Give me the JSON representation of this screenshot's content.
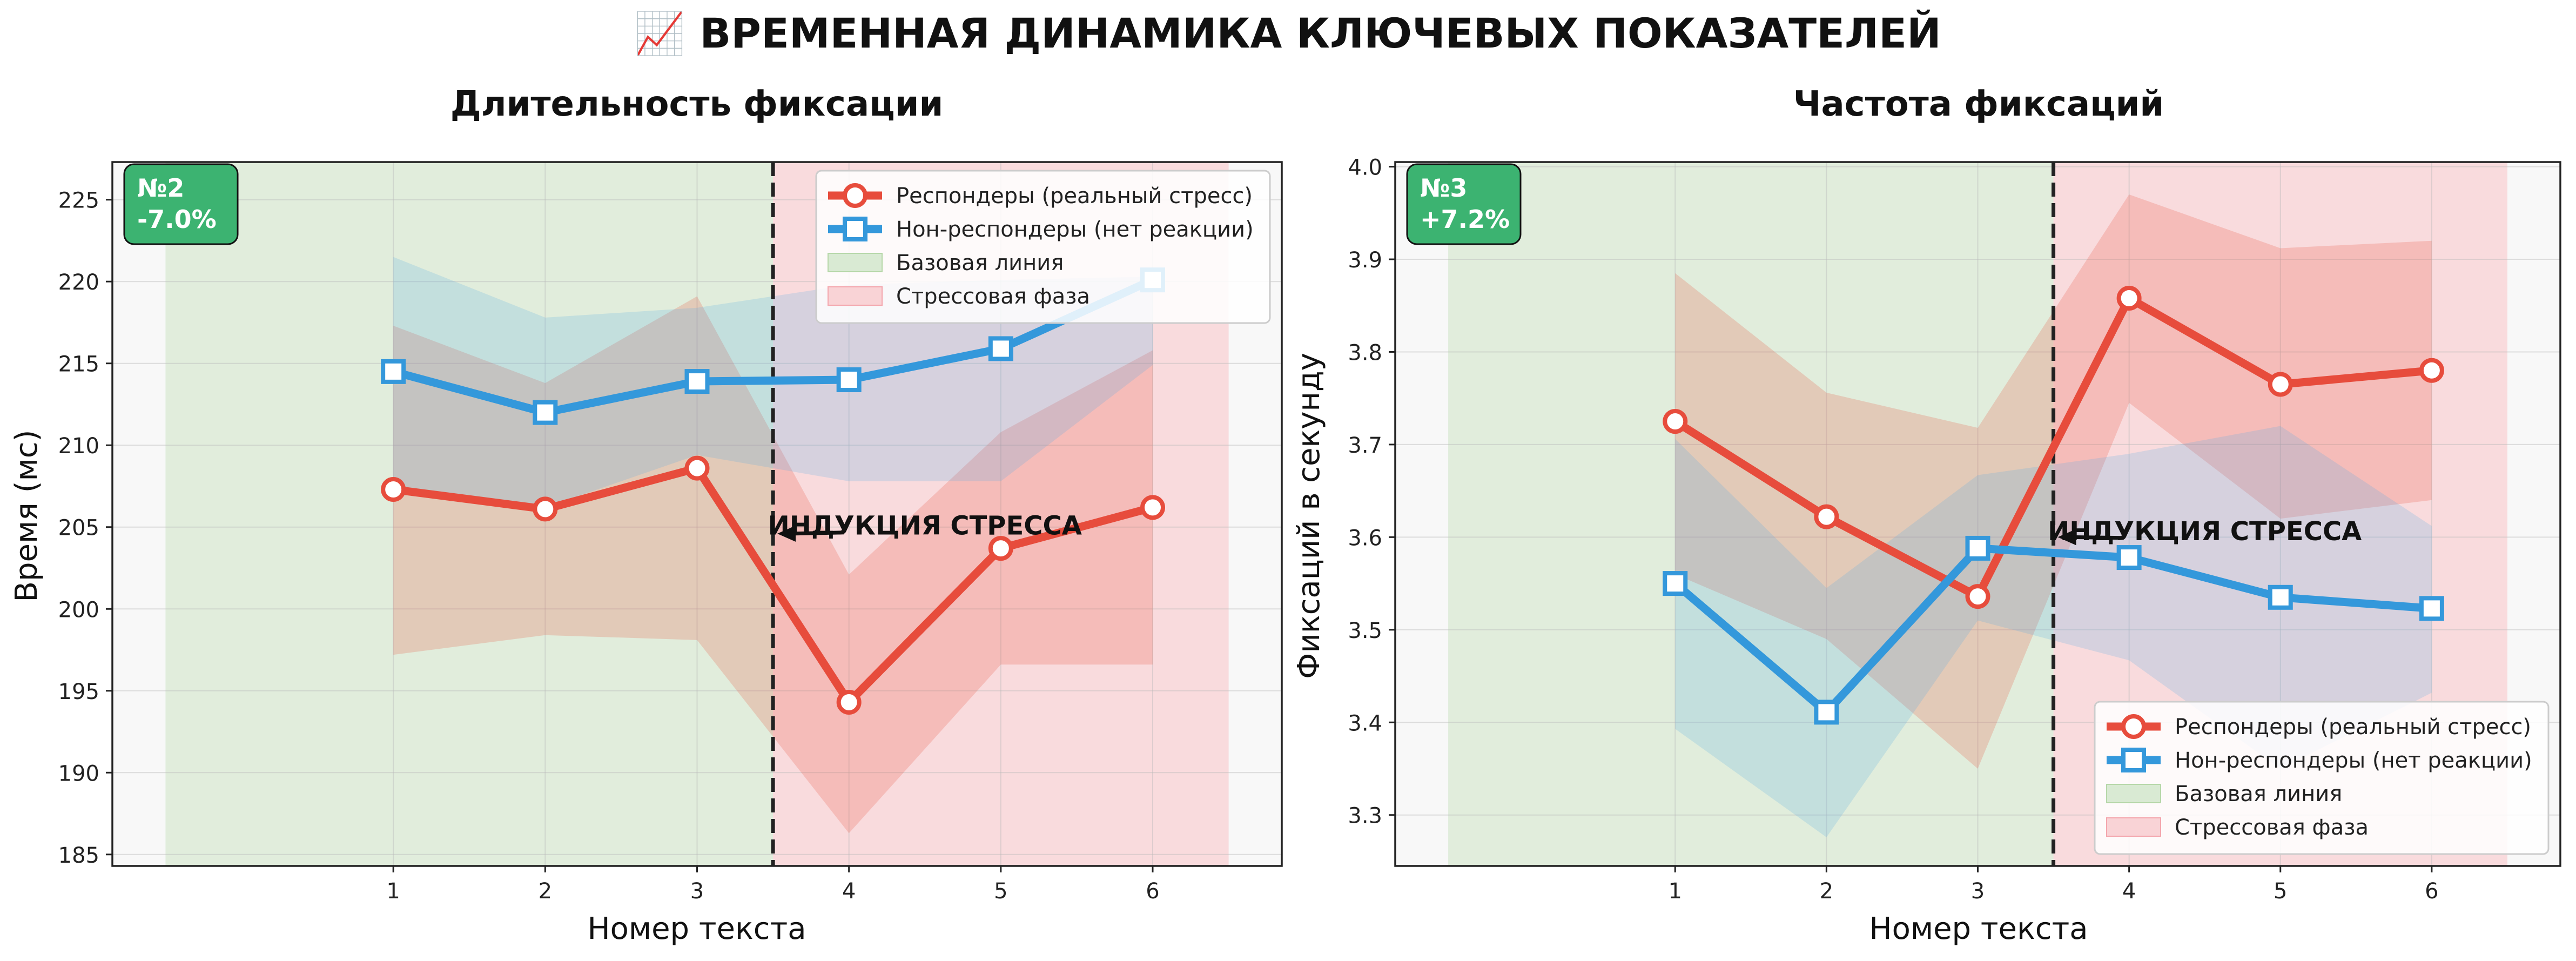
{
  "suptitle": "📈 ВРЕМЕННАЯ ДИНАМИКА КЛЮЧЕВЫХ ПОКАЗАТЕЛЕЙ",
  "colors": {
    "responders": "#e74c3c",
    "nonresponders": "#3498db",
    "baseline_fill": "#d9ead3",
    "stress_fill": "#f9d3d6",
    "badge": "#3cb371",
    "divider": "#222222"
  },
  "chart_data": [
    {
      "type": "line",
      "title": "Длительность фиксации",
      "xlabel": "Номер текста",
      "ylabel": "Время (мс)",
      "x": [
        1,
        2,
        3,
        4,
        5,
        6
      ],
      "xticks": [
        "1",
        "2",
        "3",
        "4",
        "5",
        "6"
      ],
      "xlim": [
        -0.85,
        6.85
      ],
      "ylim": [
        184.3,
        227.3
      ],
      "yticks": [
        185,
        190,
        195,
        200,
        205,
        210,
        215,
        220,
        225
      ],
      "tick_format": 0,
      "grid": true,
      "legend_placement": "upper right",
      "badge": {
        "line1": "№2",
        "line2": "-7.0%"
      },
      "annotation": {
        "text": "ИНДУКЦИЯ СТРЕССА",
        "x_text": 4.5,
        "y_text": 205.0,
        "x_arrow": 3.5,
        "y_arrow": 204.6
      },
      "phases": [
        {
          "name": "Базовая линия",
          "start": -0.5,
          "end": 3.5
        },
        {
          "name": "Стрессовая фаза",
          "start": 3.5,
          "end": 6.5
        }
      ],
      "divider_x": 3.5,
      "series": [
        {
          "name": "Респондеры (реальный стресс)",
          "values": [
            207.3,
            206.1,
            208.6,
            194.3,
            203.7,
            206.2
          ],
          "lower": [
            197.2,
            198.4,
            198.1,
            186.3,
            196.6,
            196.6
          ],
          "upper": [
            217.3,
            213.8,
            219.1,
            202.1,
            210.8,
            215.8
          ]
        },
        {
          "name": "Нон-респондеры (нет реакции)",
          "values": [
            214.5,
            212.0,
            213.9,
            214.0,
            215.9,
            220.1
          ],
          "lower": [
            207.5,
            206.2,
            209.4,
            207.8,
            207.8,
            214.9
          ],
          "upper": [
            221.5,
            217.8,
            218.4,
            219.8,
            220.1,
            220.3
          ]
        }
      ]
    },
    {
      "type": "line",
      "title": "Частота фиксаций",
      "xlabel": "Номер текста",
      "ylabel": "Фиксаций в секунду",
      "x": [
        1,
        2,
        3,
        4,
        5,
        6
      ],
      "xticks": [
        "1",
        "2",
        "3",
        "4",
        "5",
        "6"
      ],
      "xlim": [
        -0.85,
        6.85
      ],
      "ylim": [
        3.245,
        4.005
      ],
      "yticks": [
        3.3,
        3.4,
        3.5,
        3.6,
        3.7,
        3.8,
        3.9,
        4.0
      ],
      "tick_format": 1,
      "grid": true,
      "legend_placement": "lower right",
      "badge": {
        "line1": "№3",
        "line2": "+7.2%"
      },
      "annotation": {
        "text": "ИНДУКЦИЯ СТРЕССА",
        "x_text": 4.5,
        "y_text": 3.605,
        "x_arrow": 3.5,
        "y_arrow": 3.6
      },
      "phases": [
        {
          "name": "Базовая линия",
          "start": -0.5,
          "end": 3.5
        },
        {
          "name": "Стрессовая фаза",
          "start": 3.5,
          "end": 6.5
        }
      ],
      "divider_x": 3.5,
      "series": [
        {
          "name": "Респондеры (реальный стресс)",
          "values": [
            3.725,
            3.622,
            3.536,
            3.858,
            3.765,
            3.78
          ],
          "lower": [
            3.56,
            3.49,
            3.35,
            3.745,
            3.62,
            3.64
          ],
          "upper": [
            3.885,
            3.756,
            3.718,
            3.97,
            3.912,
            3.92
          ]
        },
        {
          "name": "Нон-респондеры (нет реакции)",
          "values": [
            3.55,
            3.411,
            3.588,
            3.578,
            3.535,
            3.523
          ],
          "lower": [
            3.393,
            3.276,
            3.51,
            3.467,
            3.35,
            3.432
          ],
          "upper": [
            3.706,
            3.545,
            3.667,
            3.69,
            3.72,
            3.612
          ]
        }
      ]
    }
  ]
}
